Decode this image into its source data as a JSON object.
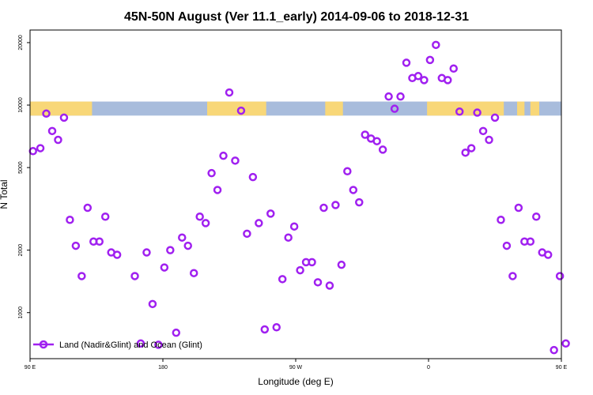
{
  "chart_data": {
    "type": "scatter",
    "title": "45N-50N August (Ver 11.1_early)   2014-09-06 to 2018-12-31",
    "xlabel": "Longitude (deg E)",
    "ylabel": "N Total",
    "y_scale": "log",
    "xlim": [
      90,
      450
    ],
    "ylim": [
      600,
      23000
    ],
    "x_ticks": [
      {
        "value": 90,
        "label": "90 E"
      },
      {
        "value": 180,
        "label": "180"
      },
      {
        "value": 270,
        "label": "90 W"
      },
      {
        "value": 360,
        "label": "0"
      },
      {
        "value": 450,
        "label": "90 E"
      },
      {
        "value": 540,
        "label": "180"
      }
    ],
    "y_ticks": [
      {
        "value": 1000,
        "label": "1000"
      },
      {
        "value": 2000,
        "label": "2000"
      },
      {
        "value": 5000,
        "label": "5000"
      },
      {
        "value": 10000,
        "label": "10000"
      },
      {
        "value": 20000,
        "label": "20000"
      }
    ],
    "land_ocean_band": {
      "y_range": [
        8900,
        10400
      ],
      "land_color": "#f8d778",
      "ocean_color": "#a8bcdc",
      "land_segments": [
        [
          90,
          132
        ],
        [
          210,
          250
        ],
        [
          290,
          302
        ],
        [
          359,
          411
        ],
        [
          420,
          425
        ],
        [
          429,
          435
        ]
      ]
    },
    "legend": {
      "position": "bottom-left"
    },
    "series": [
      {
        "name": "Land (Nadir&Glint) and Ocean (Glint)",
        "color": "#a020f0",
        "marker": "open-circle",
        "points": [
          [
            92,
            6000
          ],
          [
            97,
            6200
          ],
          [
            101,
            9100
          ],
          [
            105,
            7500
          ],
          [
            109,
            6800
          ],
          [
            113,
            8700
          ],
          [
            117,
            2800
          ],
          [
            121,
            2100
          ],
          [
            125,
            1500
          ],
          [
            129,
            3200
          ],
          [
            133,
            2200
          ],
          [
            137,
            2200
          ],
          [
            141,
            2900
          ],
          [
            145,
            1950
          ],
          [
            149,
            1900
          ],
          [
            161,
            1500
          ],
          [
            165,
            710
          ],
          [
            169,
            1950
          ],
          [
            173,
            1100
          ],
          [
            177,
            700
          ],
          [
            181,
            1650
          ],
          [
            185,
            2000
          ],
          [
            189,
            800
          ],
          [
            193,
            2300
          ],
          [
            197,
            2100
          ],
          [
            201,
            1550
          ],
          [
            205,
            2900
          ],
          [
            209,
            2700
          ],
          [
            213,
            4700
          ],
          [
            217,
            3900
          ],
          [
            221,
            5700
          ],
          [
            225,
            11500
          ],
          [
            229,
            5400
          ],
          [
            233,
            9400
          ],
          [
            237,
            2400
          ],
          [
            241,
            4500
          ],
          [
            245,
            2700
          ],
          [
            249,
            830
          ],
          [
            253,
            3000
          ],
          [
            257,
            850
          ],
          [
            261,
            1450
          ],
          [
            265,
            2300
          ],
          [
            269,
            2600
          ],
          [
            273,
            1600
          ],
          [
            277,
            1750
          ],
          [
            281,
            1750
          ],
          [
            285,
            1400
          ],
          [
            289,
            3200
          ],
          [
            293,
            1350
          ],
          [
            297,
            3300
          ],
          [
            301,
            1700
          ],
          [
            305,
            4800
          ],
          [
            309,
            3900
          ],
          [
            313,
            3400
          ],
          [
            317,
            7200
          ],
          [
            321,
            6900
          ],
          [
            325,
            6700
          ],
          [
            329,
            6100
          ],
          [
            333,
            11000
          ],
          [
            337,
            9600
          ],
          [
            341,
            11000
          ],
          [
            345,
            16000
          ],
          [
            349,
            13500
          ],
          [
            353,
            13800
          ],
          [
            357,
            13200
          ],
          [
            361,
            16500
          ],
          [
            365,
            19500
          ],
          [
            369,
            13500
          ],
          [
            373,
            13200
          ],
          [
            377,
            15000
          ],
          [
            381,
            9300
          ],
          [
            385,
            5900
          ],
          [
            389,
            6200
          ],
          [
            393,
            9200
          ],
          [
            397,
            7500
          ],
          [
            401,
            6800
          ],
          [
            405,
            8700
          ],
          [
            409,
            2800
          ],
          [
            413,
            2100
          ],
          [
            417,
            1500
          ],
          [
            421,
            3200
          ],
          [
            425,
            2200
          ],
          [
            429,
            2200
          ],
          [
            433,
            2900
          ],
          [
            437,
            1950
          ],
          [
            441,
            1900
          ],
          [
            445,
            660
          ],
          [
            449,
            1500
          ],
          [
            453,
            710
          ]
        ]
      }
    ]
  }
}
